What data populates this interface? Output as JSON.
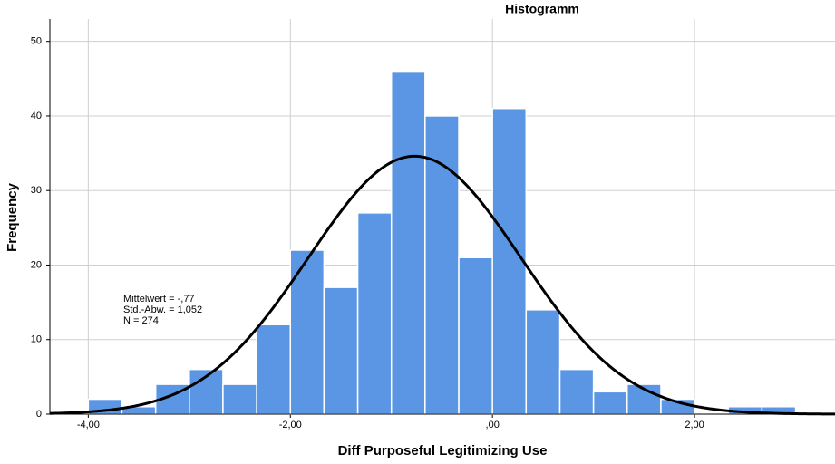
{
  "chart_data": {
    "type": "histogram",
    "title": "Histogramm",
    "x_label": "Diff Purposeful Legitimizing Use",
    "y_label": "Frequency",
    "bins": [
      -4,
      -3.667,
      -3.333,
      -3,
      -2.667,
      -2.333,
      -2,
      -1.667,
      -1.333,
      -1,
      -0.667,
      -0.333,
      0,
      0.333,
      0.667,
      1,
      1.333,
      1.667,
      2,
      2.333,
      2.667,
      3
    ],
    "values": [
      2,
      1,
      4,
      6,
      4,
      12,
      22,
      17,
      27,
      46,
      40,
      21,
      41,
      14,
      6,
      3,
      4,
      2,
      0,
      1,
      1
    ],
    "color": "#5a96e3",
    "normal_curve": {
      "mean": -0.77,
      "sd": 1.052,
      "n": 274
    },
    "annotations": [
      "Mittelwert = -,77",
      "Std.-Abw. = 1,052",
      "N = 274"
    ],
    "xlim": [
      -4.38,
      3.39
    ],
    "ylim": [
      0,
      53
    ],
    "xticks": [
      {
        "value": -4,
        "label": "-4,00"
      },
      {
        "value": -2,
        "label": "-2,00"
      },
      {
        "value": 0,
        "label": ",00"
      },
      {
        "value": 2,
        "label": "2,00"
      }
    ],
    "yticks": [
      0,
      10,
      20,
      30,
      40,
      50
    ],
    "grid": true
  }
}
